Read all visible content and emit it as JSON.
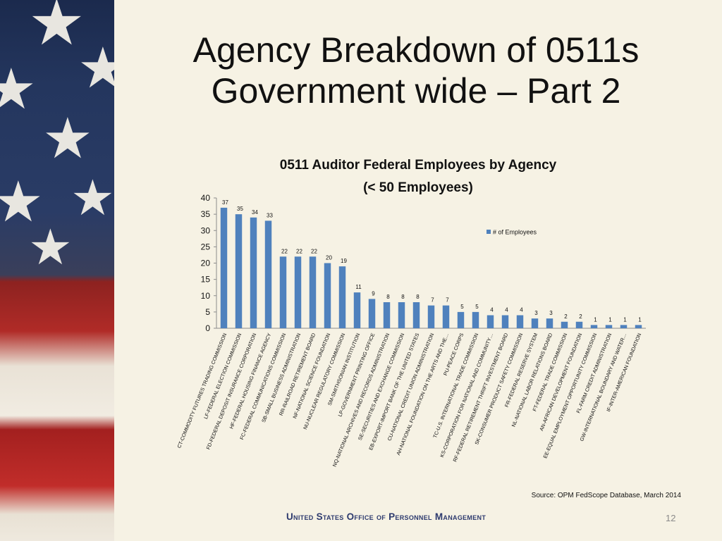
{
  "slide": {
    "title_line1": "Agency Breakdown of 0511s",
    "title_line2": "Government wide – Part 2",
    "source": "Source: OPM FedScope Database, March 2014",
    "footer": "United States Office of Personnel Management",
    "page_number": "12"
  },
  "colors": {
    "bar": "#4f81bd",
    "background": "#f6f2e4"
  },
  "chart_data": {
    "type": "bar",
    "title_line1": "0511 Auditor Federal Employees by Agency",
    "title_line2": "(< 50 Employees)",
    "legend_label": "# of Employees",
    "legend_position": "right",
    "ylim": [
      0,
      40
    ],
    "yticks": [
      "0",
      "5",
      "10",
      "15",
      "20",
      "25",
      "30",
      "35",
      "40"
    ],
    "grid": false,
    "categories": [
      "CT-COMMODITY FUTURES TRADING COMMISSION",
      "LF-FEDERAL ELECTION COMMISSION",
      "FD-FEDERAL DEPOSIT INSURANCE CORPORATION",
      "HF-FEDERAL HOUSING FINANCE AGENCY",
      "FC-FEDERAL COMMUNICATIONS COMMISSION",
      "SB-SMALL BUSINESS ADMINISTRATION",
      "RR-RAILROAD RETIREMENT BOARD",
      "NF-NATIONAL SCIENCE FOUNDATION",
      "NU-NUCLEAR REGULATORY COMMISSION",
      "SM-SMITHSONIAN INSTITUTION",
      "LP-GOVERNMENT PRINTING OFFICE",
      "NQ-NATIONAL ARCHIVES AND RECORDS ADMINISTRATION",
      "SE-SECURITIES AND EXCHANGE COMMISSION",
      "EB-EXPORT-IMPORT BANK OF THE UNITED STATES",
      "CU-NATIONAL CREDIT UNION ADMINISTRATION",
      "AH-NATIONAL FOUNDATION ON THE ARTS AND THE…",
      "PU-PEACE CORPS",
      "TC-U.S. INTERNATIONAL TRADE COMMISSION",
      "KS-CORPORATION FOR NATIONAL AND COMMUNITY…",
      "RF-FEDERAL RETIREMENT THRIFT INVESTMENT BOARD",
      "SK-CONSUMER PRODUCT SAFETY COMMISSION",
      "FR-FEDERAL RESERVE SYSTEM",
      "NL-NATIONAL LABOR RELATIONS BOARD",
      "FT-FEDERAL TRADE COMMISSION",
      "AN-AFRICAN DEVELOPMENT FOUNDATION",
      "EE-EQUAL EMPLOYMENT OPPORTUNITY COMMISSION",
      "FL-FARM CREDIT ADMINISTRATION",
      "GW-INTERNATIONAL BOUNDARY AND WATER…",
      "IF-INTER-AMERICAN FOUNDATION"
    ],
    "series": [
      {
        "name": "# of Employees",
        "values": [
          37,
          35,
          34,
          33,
          22,
          22,
          22,
          20,
          19,
          11,
          9,
          8,
          8,
          8,
          7,
          7,
          5,
          5,
          4,
          4,
          4,
          3,
          3,
          2,
          2,
          1,
          1,
          1,
          1
        ]
      }
    ]
  }
}
